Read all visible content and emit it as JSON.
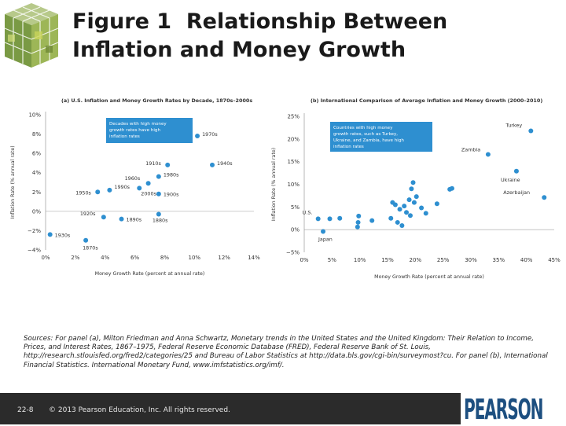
{
  "slide": {
    "title_line1": "Figure 1  Relationship Between",
    "title_line2": "Inflation and Money Growth",
    "sources": "Sources: For panel (a), Milton Friedman and Anna Schwartz, Monetary trends in the United States and the United Kingdom: Their Relation to Income, Prices, and Interest Rates, 1867–1975, Federal Reserve Economic Database (FRED), Federal Reserve Bank of St. Louis, http://research.stlouisfed.org/fred2/categories/25 and Bureau of Labor Statistics at http://data.bls.gov/cgi-bin/surveymost?cu. For panel (b), International Financial Statistics. International Monetary Fund, www.imfstatistics.org/imf/.",
    "slide_number": "22-8",
    "copyright": "© 2013 Pearson Education, Inc. All rights reserved.",
    "brand": "PEARSON"
  },
  "colors": {
    "point": "#2e8fd0",
    "callout": "#2e8fd0",
    "axis_text": "#333333",
    "footer_bg": "#2b2b2b",
    "brand": "#1d4f80"
  },
  "chart_data": [
    {
      "type": "scatter",
      "title": "(a) U.S. Inflation and Money Growth Rates by Decade, 1870s–2000s",
      "xlabel": "Money Growth Rate (percent at annual rate)",
      "ylabel": "Inflation Rate (% annual rate)",
      "xlim": [
        0,
        14
      ],
      "ylim": [
        -4,
        10
      ],
      "xticks": [
        "0%",
        "2%",
        "4%",
        "6%",
        "8%",
        "10%",
        "12%",
        "14%"
      ],
      "yticks": [
        "−4%",
        "−2%",
        "0%",
        "2%",
        "4%",
        "6%",
        "8%",
        "10%"
      ],
      "callout": "Decades with high money growth rates have high inflation rates",
      "points": [
        {
          "label": "1970s",
          "x": 10.2,
          "y": 7.8
        },
        {
          "label": "1910s",
          "x": 8.2,
          "y": 4.8
        },
        {
          "label": "1940s",
          "x": 11.2,
          "y": 4.8
        },
        {
          "label": "1980s",
          "x": 7.6,
          "y": 3.6
        },
        {
          "label": "1960s",
          "x": 6.9,
          "y": 2.9
        },
        {
          "label": "1950s",
          "x": 3.5,
          "y": 2.0
        },
        {
          "label": "1990s",
          "x": 4.3,
          "y": 2.2
        },
        {
          "label": "2000s",
          "x": 6.3,
          "y": 2.4
        },
        {
          "label": "1900s",
          "x": 7.6,
          "y": 1.8
        },
        {
          "label": "1920s",
          "x": 3.9,
          "y": -0.6
        },
        {
          "label": "1890s",
          "x": 5.1,
          "y": -0.8
        },
        {
          "label": "1880s",
          "x": 7.6,
          "y": -0.3
        },
        {
          "label": "1930s",
          "x": 0.3,
          "y": -2.4
        },
        {
          "label": "1870s",
          "x": 2.7,
          "y": -3.0
        }
      ]
    },
    {
      "type": "scatter",
      "title": "(b) International Comparison of Average Inflation and Money Growth (2000–2010)",
      "xlabel": "Money Growth Rate (percent at annual rate)",
      "ylabel": "Inflation Rate (% annual rate)",
      "xlim": [
        0,
        45
      ],
      "ylim": [
        -5,
        25
      ],
      "xticks": [
        "0%",
        "5%",
        "10%",
        "15%",
        "20%",
        "25%",
        "30%",
        "35%",
        "40%",
        "45%"
      ],
      "yticks": [
        "−5%",
        "0%",
        "5%",
        "10%",
        "15%",
        "20%",
        "25%"
      ],
      "callout": "Countries with high money growth rates, such as Turkey, Ukraine, and Zambia, have high inflation rates",
      "points": [
        {
          "label": "Turkey",
          "x": 40.8,
          "y": 21.8
        },
        {
          "label": "Zambia",
          "x": 33.1,
          "y": 16.6
        },
        {
          "label": "Ukraine",
          "x": 38.2,
          "y": 12.9
        },
        {
          "label": "Azerbaijan",
          "x": 43.2,
          "y": 7.1
        },
        {
          "label": "U.S.",
          "x": 2.5,
          "y": 2.4
        },
        {
          "label": "Japan",
          "x": 3.4,
          "y": -0.4
        },
        {
          "label": "",
          "x": 4.6,
          "y": 2.4
        },
        {
          "label": "",
          "x": 6.4,
          "y": 2.5
        },
        {
          "label": "",
          "x": 9.8,
          "y": 3.0
        },
        {
          "label": "",
          "x": 9.7,
          "y": 1.6
        },
        {
          "label": "",
          "x": 9.6,
          "y": 0.6
        },
        {
          "label": "",
          "x": 12.2,
          "y": 2.0
        },
        {
          "label": "",
          "x": 15.6,
          "y": 2.5
        },
        {
          "label": "",
          "x": 15.9,
          "y": 6.0
        },
        {
          "label": "",
          "x": 16.4,
          "y": 5.5
        },
        {
          "label": "",
          "x": 16.8,
          "y": 1.6
        },
        {
          "label": "",
          "x": 17.2,
          "y": 4.5
        },
        {
          "label": "",
          "x": 17.6,
          "y": 0.9
        },
        {
          "label": "",
          "x": 18.0,
          "y": 5.2
        },
        {
          "label": "",
          "x": 18.4,
          "y": 3.8
        },
        {
          "label": "",
          "x": 18.9,
          "y": 6.6
        },
        {
          "label": "",
          "x": 19.1,
          "y": 3.1
        },
        {
          "label": "",
          "x": 19.3,
          "y": 9.0
        },
        {
          "label": "",
          "x": 19.6,
          "y": 10.4
        },
        {
          "label": "",
          "x": 19.8,
          "y": 6.0
        },
        {
          "label": "",
          "x": 20.2,
          "y": 7.3
        },
        {
          "label": "",
          "x": 21.1,
          "y": 4.8
        },
        {
          "label": "",
          "x": 21.9,
          "y": 3.6
        },
        {
          "label": "",
          "x": 23.9,
          "y": 5.7
        },
        {
          "label": "",
          "x": 26.2,
          "y": 8.9
        },
        {
          "label": "",
          "x": 26.6,
          "y": 9.1
        }
      ]
    }
  ]
}
